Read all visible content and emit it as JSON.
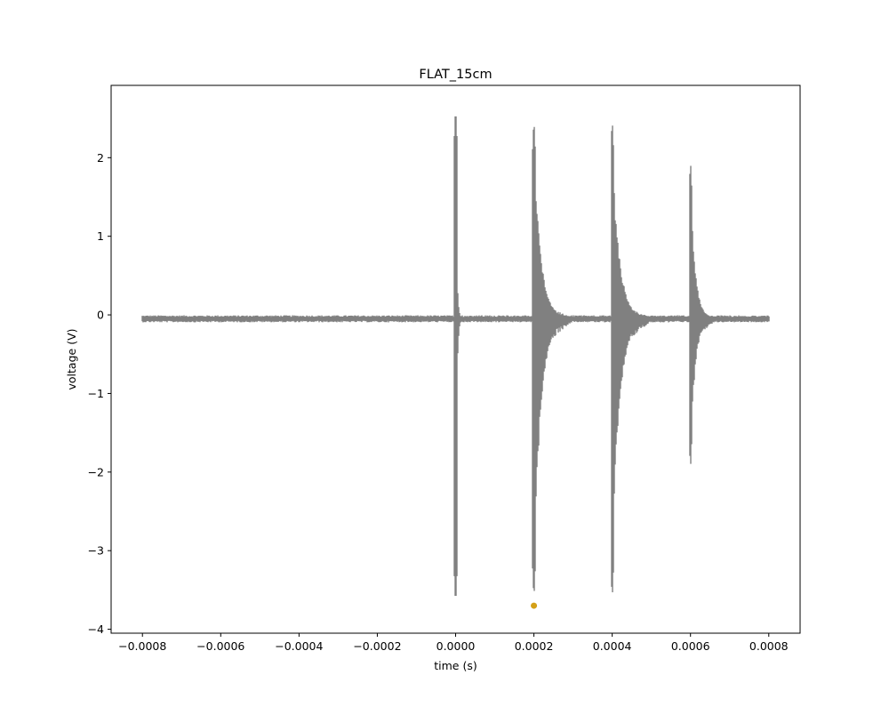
{
  "chart_data": {
    "type": "line",
    "title": "FLAT_15cm",
    "xlabel": "time (s)",
    "ylabel": "voltage (V)",
    "xlim": [
      -0.00088,
      0.00088
    ],
    "ylim": [
      -4.05,
      2.92
    ],
    "x_ticks": [
      -0.0008,
      -0.0006,
      -0.0004,
      -0.0002,
      0.0,
      0.0002,
      0.0004,
      0.0006,
      0.0008
    ],
    "x_tick_labels": [
      "−0.0008",
      "−0.0006",
      "−0.0004",
      "−0.0002",
      "0.0000",
      "0.0002",
      "0.0004",
      "0.0006",
      "0.0008"
    ],
    "y_ticks": [
      -4,
      -3,
      -2,
      -1,
      0,
      1,
      2
    ],
    "y_tick_labels": [
      "−4",
      "−3",
      "−2",
      "−1",
      "0",
      "1",
      "2"
    ],
    "grid": false,
    "series": [
      {
        "color": "#808080",
        "baseline": -0.05,
        "x_range": [
          -0.0008,
          0.0008
        ],
        "pulses": [
          {
            "t": 0.0,
            "max": 2.65,
            "min": -3.7,
            "decay": 3e-06,
            "ring": 0.15
          },
          {
            "t": 0.0002,
            "max": 2.5,
            "min": -3.62,
            "decay": 1.8e-05,
            "ring": 0.45
          },
          {
            "t": 0.0004,
            "max": 2.5,
            "min": -3.62,
            "decay": 1.8e-05,
            "ring": 0.45
          },
          {
            "t": 0.0006,
            "max": 1.97,
            "min": -1.97,
            "decay": 1.2e-05,
            "ring": 0.28
          }
        ]
      }
    ],
    "markers": [
      {
        "x": 0.0002,
        "y": -3.7,
        "color": "#d4a017"
      }
    ]
  }
}
